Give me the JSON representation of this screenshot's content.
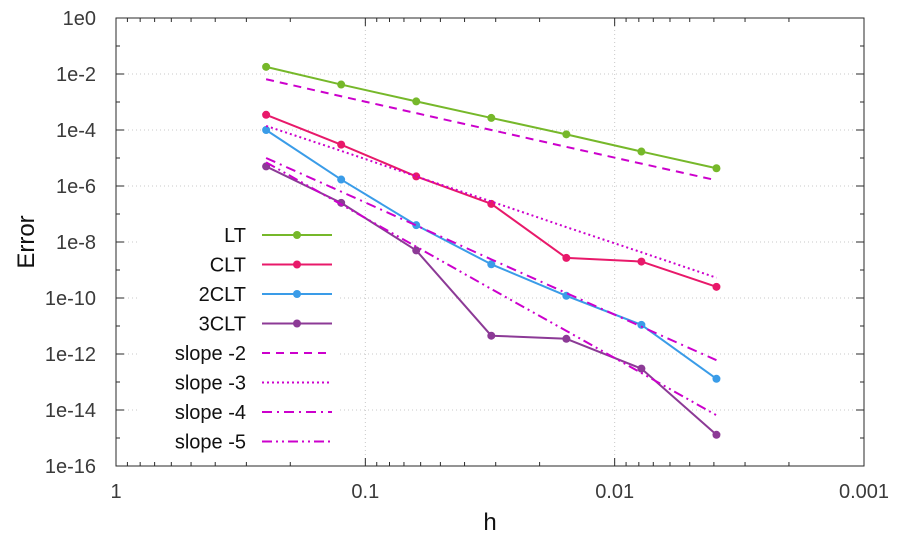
{
  "chart_data": {
    "type": "line",
    "xlabel": "h",
    "ylabel": "Error",
    "x_scale": "log",
    "y_scale": "log",
    "x_reversed": true,
    "xlim": [
      1,
      0.001
    ],
    "ylim": [
      1e-16,
      1
    ],
    "grid": true,
    "legend_position": "left",
    "x_ticks": [
      {
        "value": 1,
        "label": "1"
      },
      {
        "value": 0.1,
        "label": "0.1"
      },
      {
        "value": 0.01,
        "label": "0.01"
      },
      {
        "value": 0.001,
        "label": "0.001"
      }
    ],
    "y_ticks": [
      {
        "value": 1,
        "label": "1e0"
      },
      {
        "value": 0.01,
        "label": "1e-2"
      },
      {
        "value": 0.0001,
        "label": "1e-4"
      },
      {
        "value": 1e-06,
        "label": "1e-6"
      },
      {
        "value": 1e-08,
        "label": "1e-8"
      },
      {
        "value": 1e-10,
        "label": "1e-10"
      },
      {
        "value": 1e-12,
        "label": "1e-12"
      },
      {
        "value": 1e-14,
        "label": "1e-14"
      },
      {
        "value": 1e-16,
        "label": "1e-16"
      }
    ],
    "x": [
      0.25,
      0.125,
      0.0625,
      0.03125,
      0.015625,
      0.0078125,
      0.00390625
    ],
    "series": [
      {
        "name": "LT",
        "color": "#76b82a",
        "style": "solid",
        "markers": true,
        "values": [
          0.018,
          0.0042,
          0.00105,
          0.00027,
          7e-05,
          1.7e-05,
          4.3e-06
        ]
      },
      {
        "name": "CLT",
        "color": "#e8196a",
        "style": "solid",
        "markers": true,
        "values": [
          0.00035,
          3e-05,
          2.2e-06,
          2.3e-07,
          2.7e-09,
          2e-09,
          2.5e-10
        ]
      },
      {
        "name": "2CLT",
        "color": "#3a9ce8",
        "style": "solid",
        "markers": true,
        "values": [
          0.0001,
          1.7e-06,
          4e-08,
          1.6e-09,
          1.2e-10,
          1.1e-11,
          1.3e-13
        ]
      },
      {
        "name": "3CLT",
        "color": "#8c3a96",
        "style": "solid",
        "markers": true,
        "values": [
          5e-06,
          2.5e-07,
          5e-09,
          4.5e-12,
          3.5e-12,
          3e-13,
          1.3e-15
        ]
      },
      {
        "name": "slope -2",
        "color": "#cc00cc",
        "style": "dashed",
        "markers": false,
        "values": [
          0.0065,
          0.0016,
          0.0004,
          0.0001,
          2.5e-05,
          6.3e-06,
          1.6e-06
        ]
      },
      {
        "name": "slope -3",
        "color": "#cc00cc",
        "style": "dotted",
        "markers": false,
        "values": [
          0.00014,
          1.8e-05,
          2.2e-06,
          2.8e-07,
          3.4e-08,
          4.3e-09,
          5.3e-10
        ]
      },
      {
        "name": "slope -4",
        "color": "#cc00cc",
        "style": "dashdot",
        "markers": false,
        "values": [
          1e-05,
          6.3e-07,
          3.9e-08,
          2.4e-09,
          1.5e-10,
          9.5e-12,
          6e-13
        ]
      },
      {
        "name": "slope -5",
        "color": "#cc00cc",
        "style": "dashdotdot",
        "markers": false,
        "values": [
          7e-06,
          2.2e-07,
          6.8e-09,
          2.1e-10,
          6.7e-12,
          2.1e-13,
          6.5e-15
        ]
      }
    ]
  }
}
